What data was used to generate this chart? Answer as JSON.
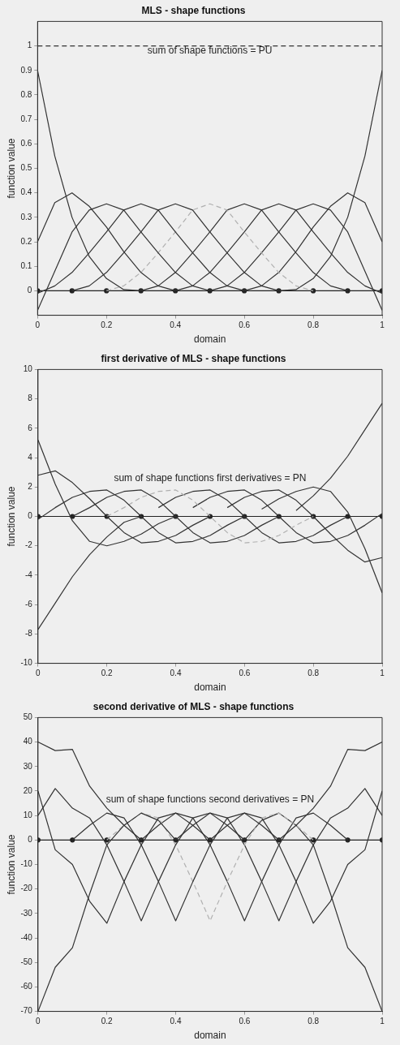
{
  "chart_data": [
    {
      "type": "line",
      "title": "MLS - shape functions",
      "xlabel": "domain",
      "ylabel": "function value",
      "xlim": [
        0,
        1
      ],
      "ylim": [
        -0.1,
        1.1
      ],
      "xticks": [
        0,
        0.2,
        0.4,
        0.6,
        0.8,
        1
      ],
      "yticks": [
        0,
        0.1,
        0.2,
        0.3,
        0.4,
        0.5,
        0.6,
        0.7,
        0.8,
        0.9,
        1
      ],
      "x": [
        0,
        0.05,
        0.1,
        0.15,
        0.2,
        0.25,
        0.3,
        0.35,
        0.4,
        0.45,
        0.5,
        0.55,
        0.6,
        0.65,
        0.7,
        0.75,
        0.8,
        0.85,
        0.9,
        0.95,
        1
      ],
      "annotations": [
        "sum of shape functions = PU"
      ],
      "series": [
        {
          "color": "#333333",
          "values": [
            0.9,
            0.55,
            0.3,
            0.14,
            0.05,
            0.005,
            0,
            null,
            null,
            null,
            null,
            null,
            null,
            null,
            null,
            null,
            null,
            null,
            null,
            null,
            null
          ]
        },
        {
          "color": "#333333",
          "values": [
            0.2,
            0.36,
            0.4,
            0.345,
            0.26,
            0.16,
            0.075,
            0.02,
            0,
            null,
            null,
            null,
            null,
            null,
            null,
            null,
            null,
            null,
            null,
            null,
            null
          ]
        },
        {
          "color": "#333333",
          "values": [
            -0.08,
            0.08,
            0.24,
            0.33,
            0.355,
            0.33,
            0.24,
            0.155,
            0.075,
            0.02,
            0,
            null,
            null,
            null,
            null,
            null,
            null,
            null,
            null,
            null,
            null
          ]
        },
        {
          "color": "#333333",
          "values": [
            -0.01,
            0.02,
            0.075,
            0.155,
            0.24,
            0.33,
            0.355,
            0.33,
            0.24,
            0.155,
            0.075,
            0.02,
            0,
            null,
            null,
            null,
            null,
            null,
            null,
            null,
            null
          ]
        },
        {
          "color": "#333333",
          "values": [
            null,
            null,
            0,
            0.02,
            0.075,
            0.155,
            0.24,
            0.33,
            0.355,
            0.33,
            0.24,
            0.155,
            0.075,
            0.02,
            0,
            null,
            null,
            null,
            null,
            null,
            null
          ]
        },
        {
          "color": "#b0b0b0",
          "line_style": "dashed",
          "values": [
            null,
            null,
            null,
            null,
            0,
            0.02,
            0.075,
            0.155,
            0.24,
            0.33,
            0.355,
            0.33,
            0.24,
            0.155,
            0.075,
            0.02,
            0,
            null,
            null,
            null,
            null
          ]
        },
        {
          "color": "#333333",
          "values": [
            null,
            null,
            null,
            null,
            null,
            null,
            0,
            0.02,
            0.075,
            0.155,
            0.24,
            0.33,
            0.355,
            0.33,
            0.24,
            0.155,
            0.075,
            0.02,
            0,
            null,
            null
          ]
        },
        {
          "color": "#333333",
          "values": [
            null,
            null,
            null,
            null,
            null,
            null,
            null,
            null,
            0,
            0.02,
            0.075,
            0.155,
            0.24,
            0.33,
            0.355,
            0.33,
            0.24,
            0.155,
            0.075,
            0.02,
            -0.01
          ]
        },
        {
          "color": "#333333",
          "values": [
            null,
            null,
            null,
            null,
            null,
            null,
            null,
            null,
            null,
            null,
            0,
            0.02,
            0.075,
            0.155,
            0.24,
            0.33,
            0.355,
            0.33,
            0.24,
            0.08,
            -0.08
          ]
        },
        {
          "color": "#333333",
          "values": [
            null,
            null,
            null,
            null,
            null,
            null,
            null,
            null,
            null,
            null,
            null,
            null,
            0,
            0.02,
            0.075,
            0.16,
            0.26,
            0.345,
            0.4,
            0.36,
            0.2
          ]
        },
        {
          "color": "#333333",
          "values": [
            null,
            null,
            null,
            null,
            null,
            null,
            null,
            null,
            null,
            null,
            null,
            null,
            null,
            null,
            0,
            0.005,
            0.05,
            0.14,
            0.3,
            0.55,
            0.9
          ]
        },
        {
          "color": "#333333",
          "line_style": "dashed",
          "x": [
            0,
            1
          ],
          "values": [
            1,
            1
          ]
        },
        {
          "color": "#222222",
          "marker": "circle",
          "x": [
            0,
            0.1,
            0.2,
            0.3,
            0.4,
            0.5,
            0.6,
            0.7,
            0.8,
            0.9,
            1
          ],
          "values": [
            0,
            0,
            0,
            0,
            0,
            0,
            0,
            0,
            0,
            0,
            0
          ]
        }
      ]
    },
    {
      "type": "line",
      "title": "first derivative of MLS - shape functions",
      "xlabel": "domain",
      "ylabel": "function value",
      "xlim": [
        0,
        1
      ],
      "ylim": [
        -10,
        10
      ],
      "xticks": [
        0,
        0.2,
        0.4,
        0.6,
        0.8,
        1
      ],
      "yticks": [
        -10,
        -8,
        -6,
        -4,
        -2,
        0,
        2,
        4,
        6,
        8,
        10
      ],
      "x": [
        0,
        0.05,
        0.1,
        0.15,
        0.2,
        0.25,
        0.3,
        0.35,
        0.4,
        0.45,
        0.5,
        0.55,
        0.6,
        0.65,
        0.7,
        0.75,
        0.8,
        0.85,
        0.9,
        0.95,
        1
      ],
      "annotations": [
        "sum of shape functions first derivatives = PN"
      ],
      "series": [
        {
          "color": "#333333",
          "values": [
            -7.7,
            -5.9,
            -4.1,
            -2.6,
            -1.4,
            -0.4,
            0,
            null,
            null,
            null,
            null,
            null,
            null,
            null,
            null,
            null,
            null,
            null,
            null,
            null,
            null
          ]
        },
        {
          "color": "#333333",
          "values": [
            5.2,
            2.2,
            -0.3,
            -1.7,
            -2.0,
            -1.7,
            -1.2,
            -0.5,
            0,
            null,
            null,
            null,
            null,
            null,
            null,
            null,
            null,
            null,
            null,
            null,
            null
          ]
        },
        {
          "color": "#333333",
          "values": [
            2.8,
            3.1,
            2.3,
            1.2,
            0,
            -1.1,
            -1.8,
            -1.7,
            -1.3,
            -0.6,
            0,
            null,
            null,
            null,
            null,
            null,
            null,
            null,
            null,
            null,
            null
          ]
        },
        {
          "color": "#333333",
          "values": [
            -0.2,
            0.6,
            1.3,
            1.7,
            1.8,
            1.1,
            0,
            -1.1,
            -1.8,
            -1.7,
            -1.3,
            -0.6,
            0,
            null,
            null,
            null,
            null,
            null,
            null,
            null,
            null
          ]
        },
        {
          "color": "#333333",
          "values": [
            null,
            null,
            0,
            0.6,
            1.3,
            1.7,
            1.8,
            1.1,
            0,
            -1.1,
            -1.8,
            -1.7,
            -1.3,
            -0.6,
            0,
            null,
            null,
            null,
            null,
            null,
            null
          ]
        },
        {
          "color": "#b0b0b0",
          "line_style": "dashed",
          "values": [
            null,
            null,
            null,
            null,
            0,
            0.6,
            1.3,
            1.7,
            1.8,
            1.1,
            0,
            -1.1,
            -1.8,
            -1.7,
            -1.3,
            -0.6,
            0,
            null,
            null,
            null,
            null
          ]
        },
        {
          "color": "#333333",
          "values": [
            null,
            null,
            null,
            null,
            null,
            null,
            null,
            0.6,
            1.3,
            1.7,
            1.8,
            1.1,
            0,
            -1.1,
            -1.8,
            -1.7,
            -1.3,
            -0.6,
            0,
            null,
            null
          ]
        },
        {
          "color": "#333333",
          "values": [
            null,
            null,
            null,
            null,
            null,
            null,
            null,
            null,
            null,
            0.6,
            1.3,
            1.7,
            1.8,
            1.1,
            0,
            -1.1,
            -1.8,
            -1.7,
            -1.3,
            -0.6,
            0.2
          ]
        },
        {
          "color": "#333333",
          "values": [
            null,
            null,
            null,
            null,
            null,
            null,
            null,
            null,
            null,
            null,
            null,
            0.6,
            1.3,
            1.7,
            1.8,
            1.1,
            0,
            -1.2,
            -2.3,
            -3.1,
            -2.8
          ]
        },
        {
          "color": "#333333",
          "values": [
            null,
            null,
            null,
            null,
            null,
            null,
            null,
            null,
            null,
            null,
            null,
            null,
            null,
            0.5,
            1.2,
            1.7,
            2.0,
            1.7,
            0.3,
            -2.2,
            -5.2
          ]
        },
        {
          "color": "#333333",
          "values": [
            null,
            null,
            null,
            null,
            null,
            null,
            null,
            null,
            null,
            null,
            null,
            null,
            null,
            null,
            null,
            0.4,
            1.4,
            2.6,
            4.1,
            5.9,
            7.7
          ]
        },
        {
          "color": "#222222",
          "marker": "circle",
          "x": [
            0,
            0.1,
            0.2,
            0.3,
            0.4,
            0.5,
            0.6,
            0.7,
            0.8,
            0.9,
            1
          ],
          "values": [
            0,
            0,
            0,
            0,
            0,
            0,
            0,
            0,
            0,
            0,
            0
          ]
        }
      ]
    },
    {
      "type": "line",
      "title": "second derivative of MLS - shape functions",
      "xlabel": "domain",
      "ylabel": "function value",
      "xlim": [
        0,
        1
      ],
      "ylim": [
        -70,
        50
      ],
      "xticks": [
        0,
        0.2,
        0.4,
        0.6,
        0.8,
        1
      ],
      "yticks": [
        -70,
        -60,
        -50,
        -40,
        -30,
        -20,
        -10,
        0,
        10,
        20,
        30,
        40,
        50
      ],
      "x": [
        0,
        0.05,
        0.1,
        0.15,
        0.2,
        0.25,
        0.3,
        0.35,
        0.4,
        0.45,
        0.5,
        0.55,
        0.6,
        0.65,
        0.7,
        0.75,
        0.8,
        0.85,
        0.9,
        0.95,
        1
      ],
      "annotations": [
        "sum of shape functions second derivatives = PN"
      ],
      "series": [
        {
          "color": "#333333",
          "values": [
            40,
            36.5,
            37,
            22,
            13,
            6,
            0,
            null,
            null,
            null,
            null,
            null,
            null,
            null,
            null,
            null,
            null,
            null,
            null,
            null,
            null
          ]
        },
        {
          "color": "#333333",
          "values": [
            -70,
            -52,
            -44,
            -22,
            -2,
            6,
            11,
            8,
            0,
            null,
            null,
            null,
            null,
            null,
            null,
            null,
            null,
            null,
            null,
            null,
            null
          ]
        },
        {
          "color": "#333333",
          "values": [
            20,
            -4,
            -10,
            -25,
            -34,
            -17,
            -2,
            9,
            11,
            6,
            0,
            null,
            null,
            null,
            null,
            null,
            null,
            null,
            null,
            null,
            null
          ]
        },
        {
          "color": "#333333",
          "values": [
            10,
            21,
            13,
            9,
            -2,
            -17,
            -33,
            -17,
            -2,
            9,
            11,
            6,
            0,
            null,
            null,
            null,
            null,
            null,
            null,
            null,
            null
          ]
        },
        {
          "color": "#333333",
          "values": [
            null,
            null,
            0,
            6,
            11,
            9,
            -2,
            -17,
            -33,
            -17,
            -2,
            9,
            11,
            6,
            0,
            null,
            null,
            null,
            null,
            null,
            null
          ]
        },
        {
          "color": "#b0b0b0",
          "line_style": "dashed",
          "values": [
            null,
            null,
            null,
            null,
            0,
            6,
            11,
            9,
            -2,
            -17,
            -33,
            -17,
            -2,
            9,
            11,
            6,
            0,
            null,
            null,
            null,
            null
          ]
        },
        {
          "color": "#333333",
          "values": [
            null,
            null,
            null,
            null,
            null,
            null,
            0,
            6,
            11,
            9,
            -2,
            -17,
            -33,
            -17,
            -2,
            9,
            11,
            6,
            0,
            null,
            null
          ]
        },
        {
          "color": "#333333",
          "values": [
            null,
            null,
            null,
            null,
            null,
            null,
            null,
            null,
            0,
            6,
            11,
            9,
            -2,
            -17,
            -33,
            -17,
            -2,
            9,
            13,
            21,
            10
          ]
        },
        {
          "color": "#333333",
          "values": [
            null,
            null,
            null,
            null,
            null,
            null,
            null,
            null,
            null,
            null,
            0,
            6,
            11,
            9,
            -2,
            -17,
            -34,
            -25,
            -10,
            -4,
            20
          ]
        },
        {
          "color": "#333333",
          "values": [
            null,
            null,
            null,
            null,
            null,
            null,
            null,
            null,
            null,
            null,
            null,
            null,
            0,
            8,
            11,
            6,
            -2,
            -22,
            -44,
            -52,
            -70
          ]
        },
        {
          "color": "#333333",
          "values": [
            null,
            null,
            null,
            null,
            null,
            null,
            null,
            null,
            null,
            null,
            null,
            null,
            null,
            null,
            0,
            6,
            13,
            22,
            37,
            36.5,
            40
          ]
        },
        {
          "color": "#222222",
          "marker": "circle",
          "x": [
            0,
            0.1,
            0.2,
            0.3,
            0.4,
            0.5,
            0.6,
            0.7,
            0.8,
            0.9,
            1
          ],
          "values": [
            0,
            0,
            0,
            0,
            0,
            0,
            0,
            0,
            0,
            0,
            0
          ]
        }
      ]
    }
  ]
}
